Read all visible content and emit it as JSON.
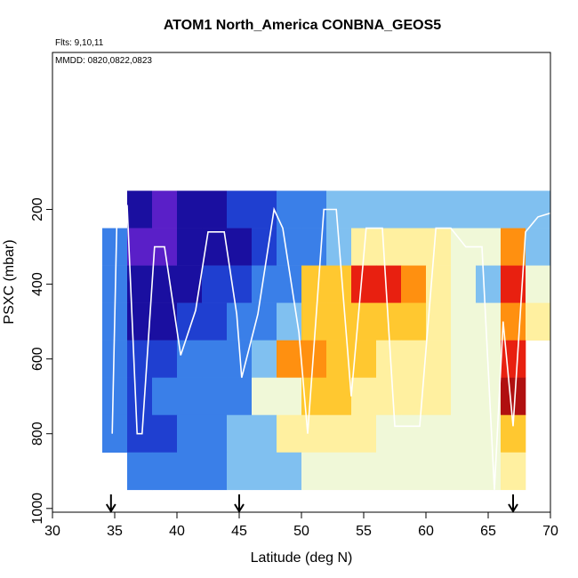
{
  "chart_data": {
    "type": "heatmap",
    "title": "ATOM1 North_America CONBNA_GEOS5",
    "annotations": [
      "Flts: 9,10,11",
      "MMDD: 0820,0822,0823"
    ],
    "x_label": "Latitude (deg N)",
    "y_label": "PSXC (mbar)",
    "xlim": [
      30,
      70
    ],
    "ylim": [
      1010,
      -220
    ],
    "xticks": [
      30,
      35,
      40,
      45,
      50,
      55,
      60,
      65,
      70
    ],
    "yticks": [
      200,
      400,
      600,
      800,
      1000
    ],
    "xbins": [
      34,
      36,
      38,
      40,
      42,
      44,
      46,
      48,
      50,
      52,
      54,
      56,
      58,
      60,
      62,
      64,
      66,
      68,
      70
    ],
    "ybins": [
      150,
      250,
      350,
      450,
      550,
      650,
      750,
      850,
      950
    ],
    "palette": [
      "#5a1fc8",
      "#1a0fa0",
      "#1f3fd0",
      "#3a7fe8",
      "#80c0f0",
      "#f0f8d8",
      "#fff0a0",
      "#ffc830",
      "#ff9010",
      "#e82010",
      "#b01010"
    ],
    "z": [
      [
        null,
        1,
        0,
        1,
        1,
        2,
        2,
        3,
        3,
        4,
        4,
        4,
        4,
        4,
        4,
        4,
        4,
        4
      ],
      [
        3,
        0,
        0,
        1,
        1,
        1,
        2,
        3,
        3,
        4,
        6,
        6,
        6,
        6,
        5,
        5,
        8,
        4
      ],
      [
        3,
        1,
        1,
        1,
        2,
        2,
        3,
        3,
        7,
        7,
        9,
        9,
        8,
        6,
        5,
        4,
        9,
        5
      ],
      [
        3,
        1,
        1,
        2,
        2,
        3,
        3,
        4,
        7,
        7,
        7,
        7,
        7,
        6,
        5,
        5,
        8,
        6
      ],
      [
        3,
        2,
        2,
        3,
        3,
        3,
        4,
        8,
        8,
        7,
        7,
        6,
        6,
        6,
        5,
        5,
        9,
        null
      ],
      [
        3,
        2,
        3,
        3,
        3,
        3,
        5,
        5,
        7,
        7,
        6,
        6,
        6,
        6,
        5,
        5,
        10,
        null
      ],
      [
        3,
        2,
        2,
        3,
        3,
        4,
        4,
        6,
        6,
        6,
        6,
        5,
        5,
        5,
        5,
        5,
        7,
        null
      ],
      [
        null,
        3,
        3,
        3,
        3,
        4,
        4,
        4,
        5,
        5,
        5,
        5,
        5,
        5,
        5,
        5,
        6,
        null
      ]
    ],
    "track": {
      "color": "#ffffff",
      "x": [
        34.8,
        35.2,
        36.0,
        36.8,
        37.2,
        38.2,
        39.0,
        40.3,
        41.5,
        42.5,
        43.8,
        44.8,
        45.2,
        46.5,
        47.8,
        48.5,
        49.8,
        50.5,
        51.8,
        52.8,
        54.0,
        55.2,
        56.5,
        57.5,
        59.5,
        60.8,
        62.0,
        63.2,
        64.5,
        65.5,
        66.2,
        67.0,
        68.0,
        69.0,
        70.0
      ],
      "y": [
        800,
        190,
        190,
        800,
        800,
        300,
        300,
        590,
        470,
        260,
        260,
        480,
        650,
        480,
        200,
        250,
        530,
        800,
        200,
        200,
        700,
        250,
        250,
        780,
        780,
        250,
        250,
        300,
        300,
        950,
        500,
        780,
        260,
        220,
        210
      ]
    },
    "arrows": [
      34.7,
      45,
      67
    ]
  }
}
